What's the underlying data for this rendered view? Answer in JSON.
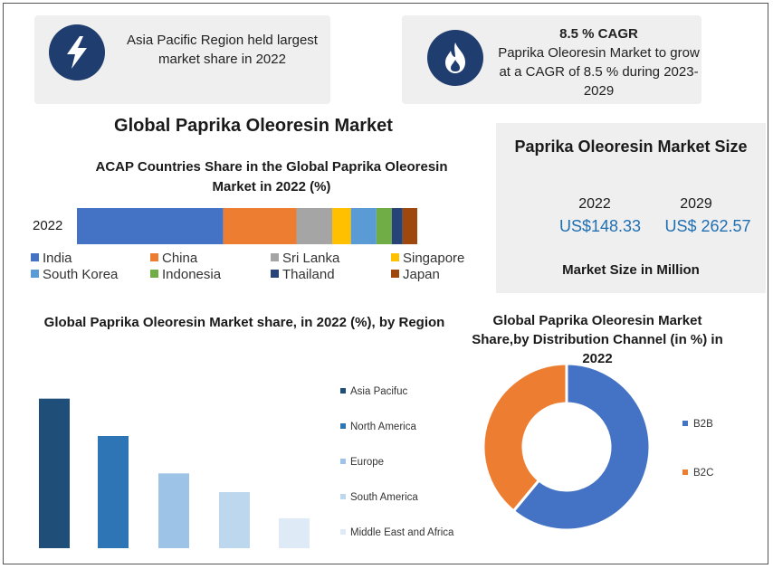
{
  "highlight_cards": [
    {
      "icon": "lightning-bolt-icon",
      "text": "Asia Pacific Region held largest market share in 2022"
    },
    {
      "icon": "flame-icon",
      "heading": "8.5 % CAGR",
      "text": "Paprika Oleoresin Market to grow at a CAGR of 8.5 % during 2023-2029"
    }
  ],
  "main_title": "Global Paprika  Oleoresin Market",
  "market_size": {
    "title": "Paprika Oleoresin Market Size",
    "year_a": "2022",
    "value_a": "US$148.33",
    "year_b": "2029",
    "value_b": "US$ 262.57",
    "footer": "Market Size in Million"
  },
  "chart_data": [
    {
      "type": "bar",
      "orientation": "horizontal-stacked",
      "title": "ACAP Countries Share in the Global Paprika Oleoresin Market in 2022 (%)",
      "categories": [
        "2022"
      ],
      "series": [
        {
          "name": "India",
          "values": [
            43
          ],
          "color": "#4472c4"
        },
        {
          "name": "China",
          "values": [
            21.5
          ],
          "color": "#ed7d31"
        },
        {
          "name": "Sri Lanka",
          "values": [
            10.5
          ],
          "color": "#a5a5a5"
        },
        {
          "name": "Singapore",
          "values": [
            5.5
          ],
          "color": "#ffc000"
        },
        {
          "name": "South Korea",
          "values": [
            7.5
          ],
          "color": "#5b9bd5"
        },
        {
          "name": "Indonesia",
          "values": [
            4.5
          ],
          "color": "#70ad47"
        },
        {
          "name": "Thailand",
          "values": [
            3.2
          ],
          "color": "#264478"
        },
        {
          "name": "Japan",
          "values": [
            4.3
          ],
          "color": "#9e480e"
        }
      ],
      "xlim": [
        0,
        100
      ],
      "legend": "bottom"
    },
    {
      "type": "bar",
      "title": "Global Paprika Oleoresin Market share, in 2022 (%), by Region",
      "categories": [
        "Asia Pacifuc",
        "North America",
        "Europe",
        "South America",
        "Middle East and Africa"
      ],
      "values": [
        40,
        30,
        20,
        15,
        8
      ],
      "colors": [
        "#1f4e79",
        "#2e75b6",
        "#9dc3e6",
        "#bdd7ee",
        "#deebf7"
      ],
      "ylim": [
        0,
        45
      ],
      "legend": "right"
    },
    {
      "type": "pie",
      "style": "donut",
      "title": "Global Paprika Oleoresin Market Share,by Distribution Channel (in %) in 2022",
      "categories": [
        "B2B",
        "B2C"
      ],
      "values": [
        61,
        39
      ],
      "colors": [
        "#4472c4",
        "#ed7d31"
      ],
      "legend": "right"
    }
  ]
}
